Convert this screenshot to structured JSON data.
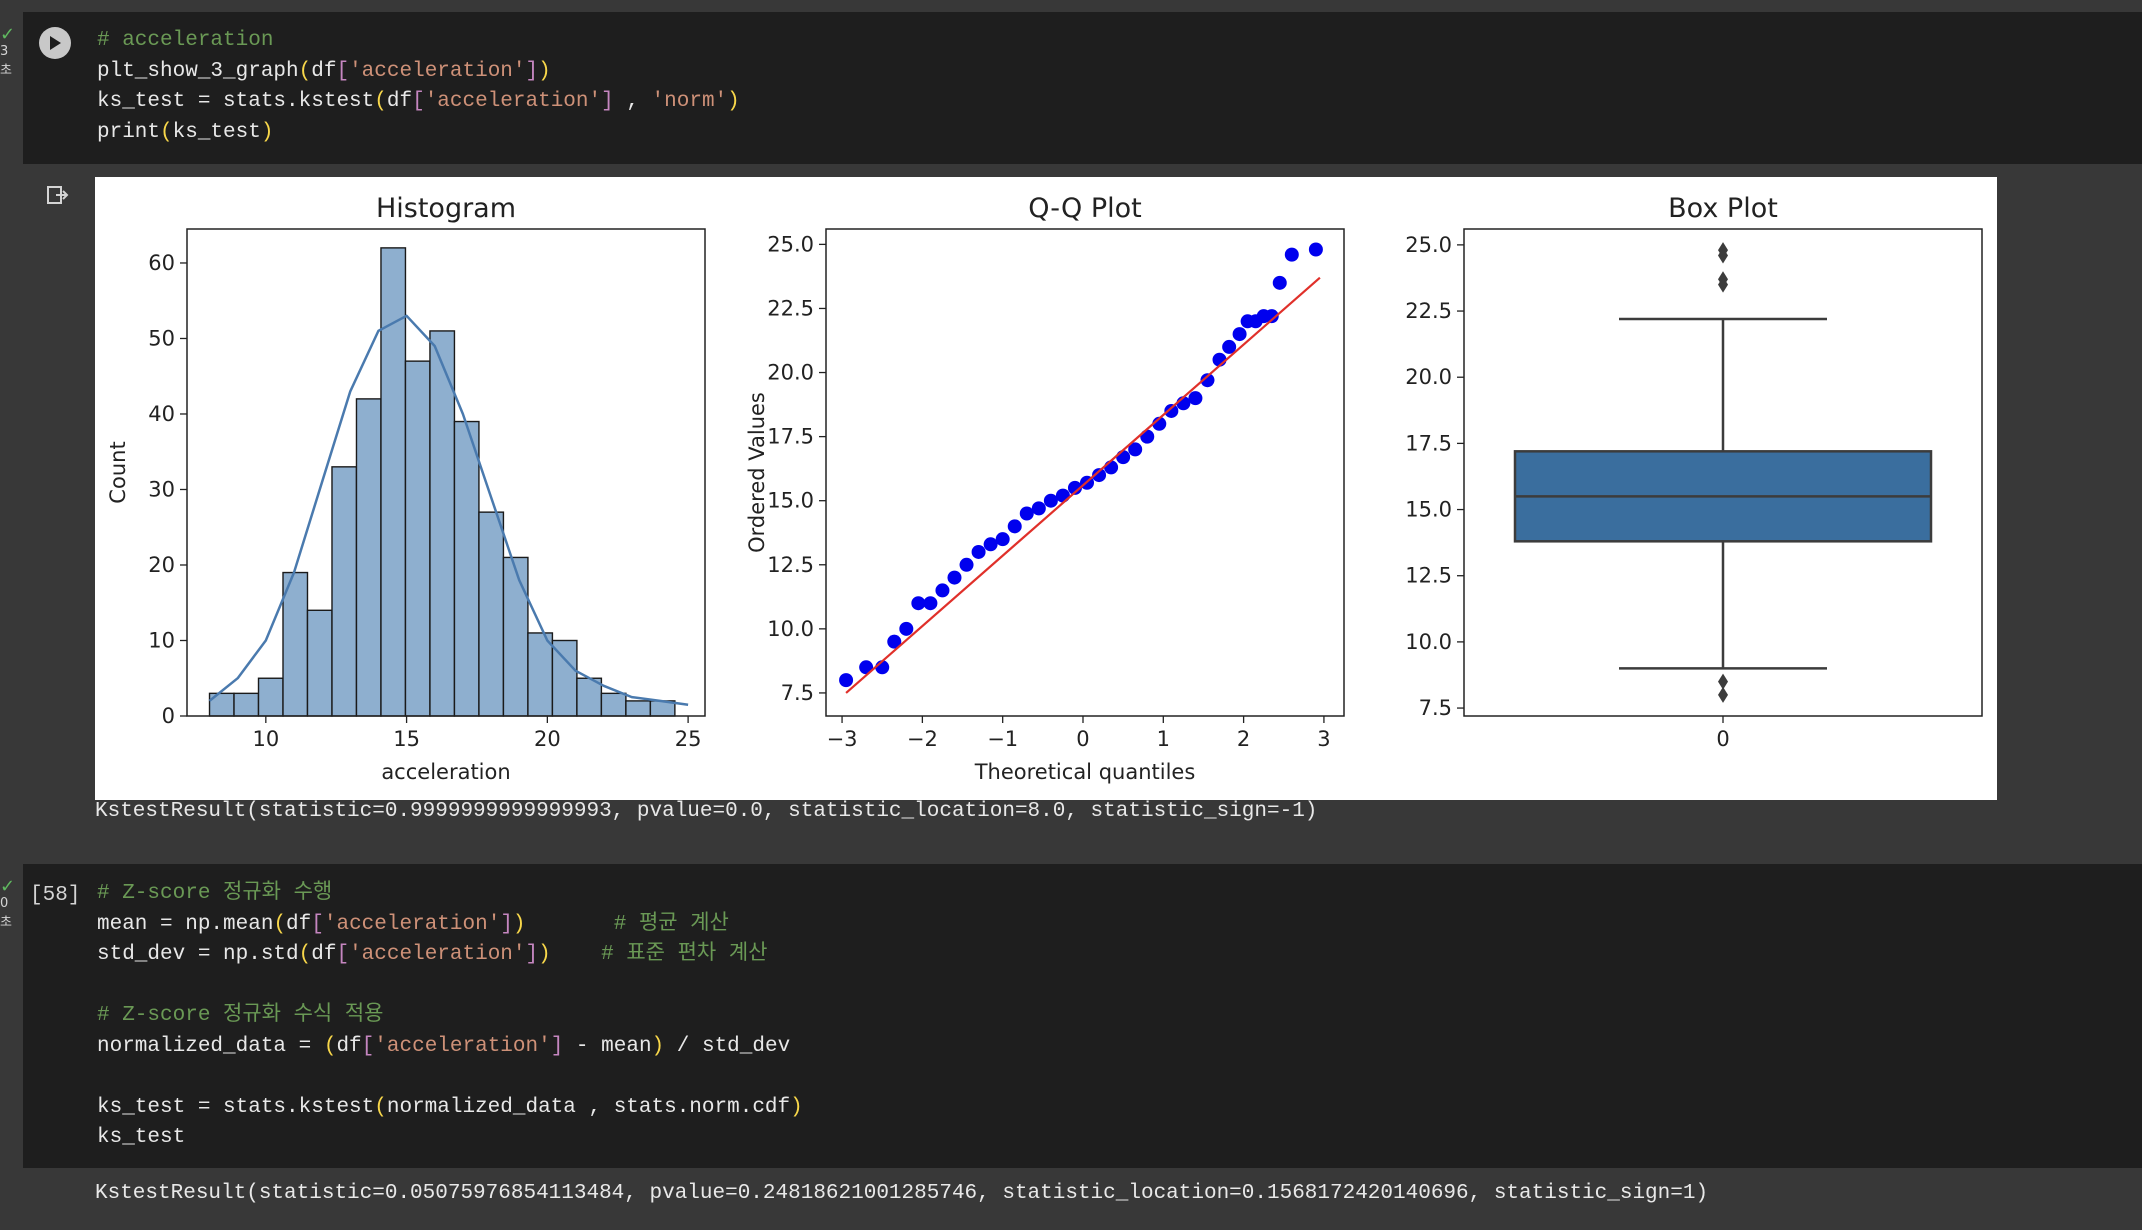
{
  "cell1": {
    "status_time": "3초",
    "code_lines": [
      [
        {
          "t": "# acceleration",
          "c": "cm"
        }
      ],
      [
        {
          "t": "plt_show_3_graph"
        },
        {
          "t": "(",
          "c": "br"
        },
        {
          "t": "df"
        },
        {
          "t": "[",
          "c": "bq"
        },
        {
          "t": "'acceleration'",
          "c": "st"
        },
        {
          "t": "]",
          "c": "bq"
        },
        {
          "t": ")",
          "c": "br"
        }
      ],
      [
        {
          "t": "ks_test = stats.kstest"
        },
        {
          "t": "(",
          "c": "br"
        },
        {
          "t": "df"
        },
        {
          "t": "[",
          "c": "bq"
        },
        {
          "t": "'acceleration'",
          "c": "st"
        },
        {
          "t": "]",
          "c": "bq"
        },
        {
          "t": " , "
        },
        {
          "t": "'norm'",
          "c": "st"
        },
        {
          "t": ")",
          "c": "br"
        }
      ],
      [
        {
          "t": "print"
        },
        {
          "t": "(",
          "c": "br"
        },
        {
          "t": "ks_test"
        },
        {
          "t": ")",
          "c": "br"
        }
      ]
    ],
    "output_text": "KstestResult(statistic=0.9999999999999993, pvalue=0.0, statistic_location=8.0, statistic_sign=-1)"
  },
  "cell2": {
    "status_time": "0초",
    "exec_count": "[58]",
    "code_lines": [
      [
        {
          "t": "# Z-score 정규화 수행",
          "c": "cm"
        }
      ],
      [
        {
          "t": "mean = np.mean"
        },
        {
          "t": "(",
          "c": "br"
        },
        {
          "t": "df"
        },
        {
          "t": "[",
          "c": "bq"
        },
        {
          "t": "'acceleration'",
          "c": "st"
        },
        {
          "t": "]",
          "c": "bq"
        },
        {
          "t": ")",
          "c": "br"
        },
        {
          "t": "       "
        },
        {
          "t": "# 평균 계산",
          "c": "cm"
        }
      ],
      [
        {
          "t": "std_dev = np.std"
        },
        {
          "t": "(",
          "c": "br"
        },
        {
          "t": "df"
        },
        {
          "t": "[",
          "c": "bq"
        },
        {
          "t": "'acceleration'",
          "c": "st"
        },
        {
          "t": "]",
          "c": "bq"
        },
        {
          "t": ")",
          "c": "br"
        },
        {
          "t": "    "
        },
        {
          "t": "# 표준 편차 계산",
          "c": "cm"
        }
      ],
      [
        {
          "t": ""
        }
      ],
      [
        {
          "t": "# Z-score 정규화 수식 적용",
          "c": "cm"
        }
      ],
      [
        {
          "t": "normalized_data = "
        },
        {
          "t": "(",
          "c": "br"
        },
        {
          "t": "df"
        },
        {
          "t": "[",
          "c": "bq"
        },
        {
          "t": "'acceleration'",
          "c": "st"
        },
        {
          "t": "]",
          "c": "bq"
        },
        {
          "t": " - mean"
        },
        {
          "t": ")",
          "c": "br"
        },
        {
          "t": " / std_dev"
        }
      ],
      [
        {
          "t": ""
        }
      ],
      [
        {
          "t": "ks_test = stats.kstest"
        },
        {
          "t": "(",
          "c": "br"
        },
        {
          "t": "normalized_data , stats.norm.cdf"
        },
        {
          "t": ")",
          "c": "br"
        }
      ],
      [
        {
          "t": "ks_test"
        }
      ]
    ],
    "output_text": "KstestResult(statistic=0.05075976854113484, pvalue=0.24818621001285746, statistic_location=0.1568172420140696, statistic_sign=1)"
  },
  "colors": {
    "bar_fill": "#8eafcf",
    "kde": "#4a7aae",
    "qq_points": "#0000ee",
    "qq_line": "#e0302a",
    "box_fill": "#3a6e9e"
  },
  "chart_data": [
    {
      "type": "bar",
      "title": "Histogram",
      "xlabel": "acceleration",
      "ylabel": "Count",
      "bin_edges": [
        8.0,
        8.87,
        9.74,
        10.61,
        11.48,
        12.35,
        13.22,
        14.09,
        14.96,
        15.83,
        16.7,
        17.57,
        18.44,
        19.31,
        20.18,
        21.05,
        21.92,
        22.79,
        23.66,
        24.53,
        25.4
      ],
      "values": [
        3,
        3,
        5,
        19,
        14,
        33,
        42,
        62,
        47,
        51,
        39,
        27,
        21,
        11,
        10,
        5,
        3,
        2,
        2,
        0
      ],
      "kde": {
        "x": [
          8,
          9,
          10,
          11,
          12,
          13,
          14,
          15,
          16,
          17,
          18,
          19,
          20,
          21,
          22,
          23,
          24,
          25
        ],
        "y": [
          2,
          5,
          10,
          19,
          31,
          43,
          51,
          53,
          49,
          40,
          29,
          18,
          10,
          6,
          4,
          2.5,
          2,
          1.5
        ]
      },
      "xlim": [
        7.2,
        25.6
      ],
      "ylim": [
        0,
        64.5
      ],
      "xticks": [
        10,
        15,
        20,
        25
      ],
      "yticks": [
        0,
        10,
        20,
        30,
        40,
        50,
        60
      ]
    },
    {
      "type": "scatter",
      "title": "Q-Q Plot",
      "xlabel": "Theoretical quantiles",
      "ylabel": "Ordered Values",
      "x": [
        -2.95,
        -2.7,
        -2.5,
        -2.35,
        -2.2,
        -2.05,
        -1.9,
        -1.75,
        -1.6,
        -1.45,
        -1.3,
        -1.15,
        -1.0,
        -0.85,
        -0.7,
        -0.55,
        -0.4,
        -0.25,
        -0.1,
        0.05,
        0.2,
        0.35,
        0.5,
        0.65,
        0.8,
        0.95,
        1.1,
        1.25,
        1.4,
        1.55,
        1.7,
        1.82,
        1.95,
        2.05,
        2.15,
        2.25,
        2.35,
        2.45,
        2.6,
        2.9
      ],
      "y": [
        8.0,
        8.5,
        8.5,
        9.5,
        10.0,
        11.0,
        11.0,
        11.5,
        12.0,
        12.5,
        13.0,
        13.3,
        13.5,
        14.0,
        14.5,
        14.7,
        15.0,
        15.2,
        15.5,
        15.7,
        16.0,
        16.3,
        16.7,
        17.0,
        17.5,
        18.0,
        18.5,
        18.8,
        19.0,
        19.7,
        20.5,
        21.0,
        21.5,
        22.0,
        22.0,
        22.2,
        22.2,
        23.5,
        24.6,
        24.8
      ],
      "fit_line": {
        "x": [
          -2.95,
          2.95
        ],
        "y": [
          7.5,
          23.7
        ]
      },
      "xlim": [
        -3.2,
        3.25
      ],
      "ylim": [
        6.6,
        25.6
      ],
      "xticks": [
        -3,
        -2,
        -1,
        0,
        1,
        2,
        3
      ],
      "yticks": [
        7.5,
        10.0,
        12.5,
        15.0,
        17.5,
        20.0,
        22.5,
        25.0
      ]
    },
    {
      "type": "box",
      "title": "Box Plot",
      "categories": [
        "0"
      ],
      "whisker_low": 9.0,
      "q1": 13.8,
      "median": 15.5,
      "q3": 17.2,
      "whisker_high": 22.2,
      "outliers": [
        24.8,
        24.6,
        23.7,
        23.5,
        8.5,
        8.0
      ],
      "ylim": [
        7.2,
        25.6
      ],
      "yticks": [
        7.5,
        10.0,
        12.5,
        15.0,
        17.5,
        20.0,
        22.5,
        25.0
      ]
    }
  ]
}
